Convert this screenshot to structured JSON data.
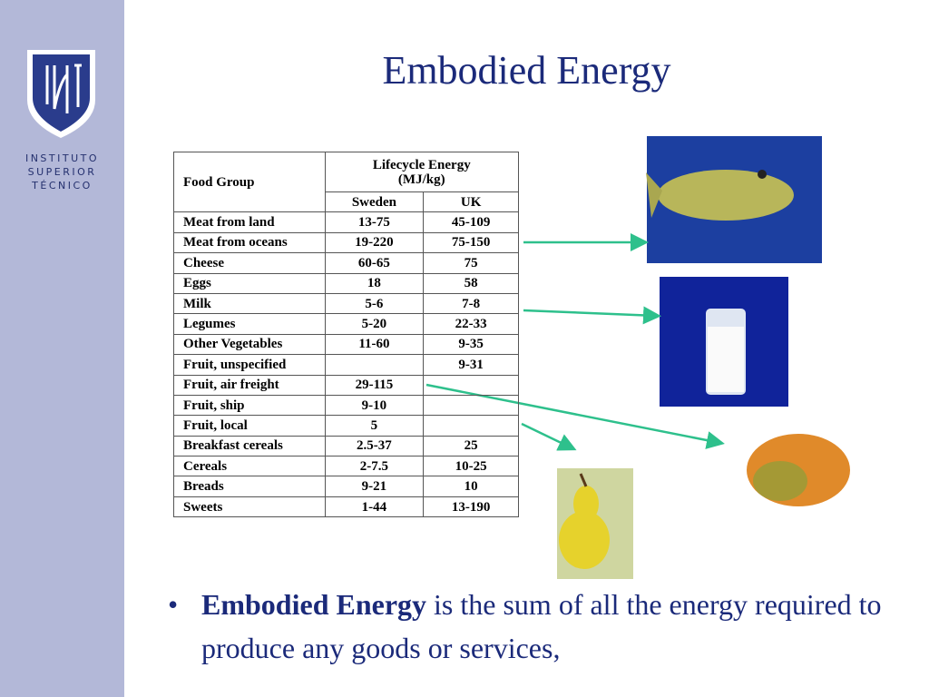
{
  "logo": {
    "lines": [
      "INSTITUTO",
      "SUPERIOR",
      "TÉCNICO"
    ]
  },
  "title": "Embodied Energy",
  "table": {
    "header": {
      "food_group": "Food Group",
      "energy": "Lifecycle Energy (MJ/kg)",
      "sweden": "Sweden",
      "uk": "UK"
    },
    "rows": [
      [
        "Meat from land",
        "13-75",
        "45-109"
      ],
      [
        "Meat from oceans",
        "19-220",
        "75-150"
      ],
      [
        "Cheese",
        "60-65",
        "75"
      ],
      [
        "Eggs",
        "18",
        "58"
      ],
      [
        "Milk",
        "5-6",
        "7-8"
      ],
      [
        "Legumes",
        "5-20",
        "22-33"
      ],
      [
        "Other Vegetables",
        "11-60",
        "9-35"
      ],
      [
        "Fruit, unspecified",
        null,
        "9-31"
      ],
      [
        "Fruit, air freight",
        "29-115",
        null
      ],
      [
        "Fruit, ship",
        "9-10",
        null
      ],
      [
        "Fruit, local",
        "5",
        null
      ],
      [
        "Breakfast cereals",
        "2.5-37",
        "25"
      ],
      [
        "Cereals",
        "2-7.5",
        "10-25"
      ],
      [
        "Breads",
        "9-21",
        "10"
      ],
      [
        "Sweets",
        "1-44",
        "13-190"
      ]
    ]
  },
  "bullet": {
    "term": "Embodied Energy",
    "text": " is the sum of all the energy required to produce any goods or services,"
  }
}
